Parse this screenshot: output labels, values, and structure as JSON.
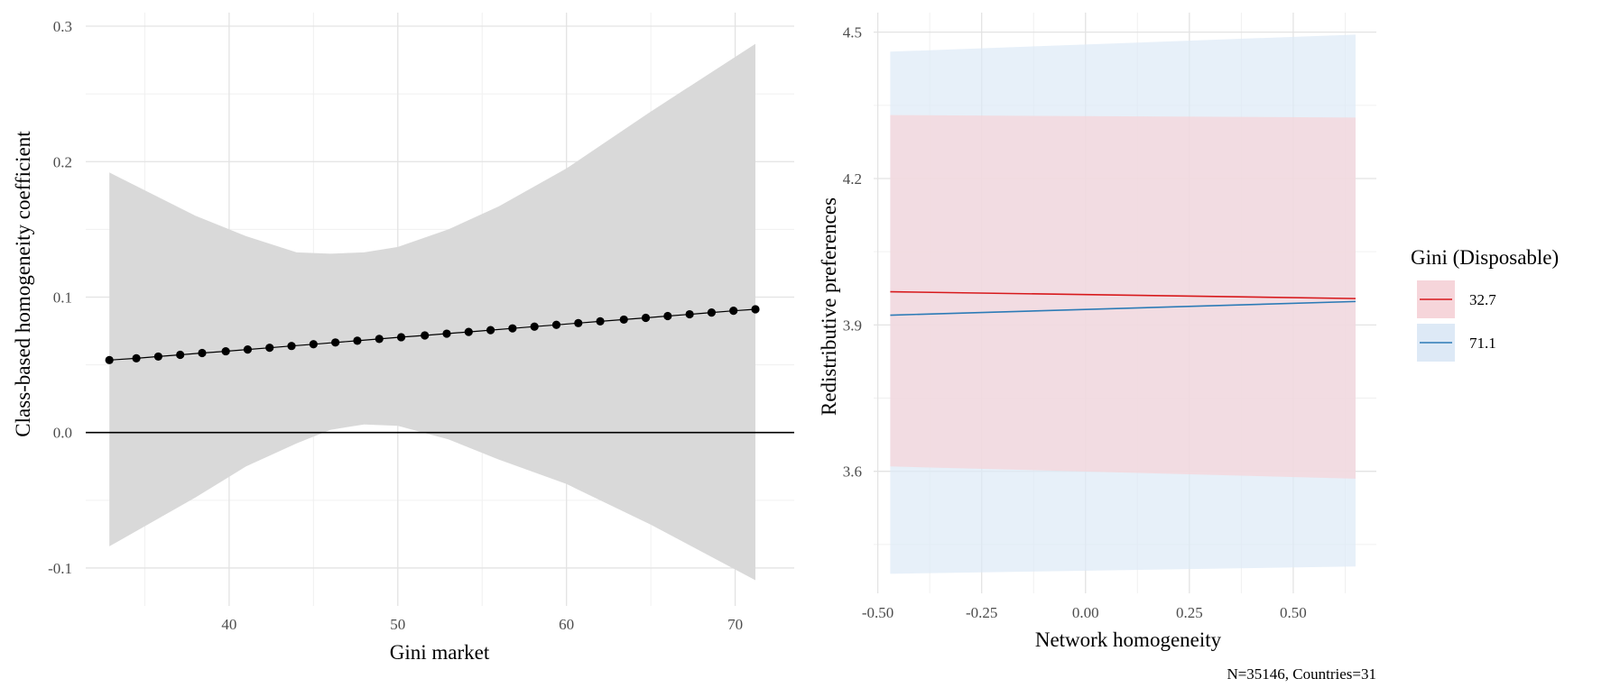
{
  "chart_data": [
    {
      "type": "line",
      "xlabel": "Gini market",
      "ylabel": "Class-based homogeneity coefficient",
      "xlim": [
        31.5,
        73.5
      ],
      "ylim": [
        -0.128,
        0.31
      ],
      "x_ticks": [
        40,
        50,
        60,
        70
      ],
      "x_tick_labels": [
        "40",
        "50",
        "60",
        "70"
      ],
      "y_ticks": [
        -0.1,
        0.0,
        0.1,
        0.2,
        0.3
      ],
      "y_tick_labels": [
        "-0.1",
        "0.0",
        "0.1",
        "0.2",
        "0.3"
      ],
      "reference_line_y": 0,
      "grid": true,
      "series": [
        {
          "x": [
            32.9,
            34.5,
            35.8,
            37.1,
            38.4,
            39.8,
            41.1,
            42.4,
            43.7,
            45.0,
            46.3,
            47.6,
            48.9,
            50.2,
            51.6,
            52.9,
            54.2,
            55.5,
            56.8,
            58.1,
            59.4,
            60.7,
            62.0,
            63.4,
            64.7,
            66.0,
            67.3,
            68.6,
            69.9,
            71.2
          ],
          "values": [
            0.0535,
            0.0548,
            0.0561,
            0.0574,
            0.0587,
            0.06,
            0.0613,
            0.0626,
            0.0639,
            0.0652,
            0.0665,
            0.0678,
            0.0691,
            0.0704,
            0.0717,
            0.073,
            0.0743,
            0.0756,
            0.0769,
            0.0782,
            0.0795,
            0.0808,
            0.0821,
            0.0834,
            0.0847,
            0.086,
            0.0873,
            0.0886,
            0.0899,
            0.091
          ],
          "color": "#000000"
        }
      ],
      "confidence_band": {
        "x": [
          32.9,
          38,
          41,
          44,
          46,
          48,
          50,
          53,
          56,
          60,
          65,
          71.2
        ],
        "upper": [
          0.192,
          0.16,
          0.145,
          0.133,
          0.132,
          0.133,
          0.137,
          0.15,
          0.167,
          0.195,
          0.237,
          0.287
        ],
        "lower": [
          -0.084,
          -0.048,
          -0.025,
          -0.008,
          0.002,
          0.006,
          0.005,
          -0.005,
          -0.02,
          -0.038,
          -0.068,
          -0.109
        ],
        "color": "#d9d9d9"
      }
    },
    {
      "type": "line",
      "xlabel": "Network homogeneity",
      "ylabel": "Redistributive preferences",
      "xlim": [
        -0.51,
        0.7
      ],
      "ylim": [
        3.35,
        4.54
      ],
      "x_ticks": [
        -0.5,
        -0.25,
        0.0,
        0.25,
        0.5
      ],
      "x_tick_labels": [
        "-0.50",
        "-0.25",
        "0.00",
        "0.25",
        "0.50"
      ],
      "y_ticks": [
        3.6,
        3.9,
        4.2,
        4.5
      ],
      "y_tick_labels": [
        "3.6",
        "3.9",
        "4.2",
        "4.5"
      ],
      "grid": true,
      "legend": {
        "title": "Gini (Disposable)",
        "position": "right"
      },
      "series": [
        {
          "name": "32.7",
          "x": [
            -0.47,
            0.65
          ],
          "values": [
            3.968,
            3.954
          ],
          "color": "#d7191c",
          "band_upper": [
            4.33,
            4.325
          ],
          "band_lower": [
            3.61,
            3.585
          ],
          "band_color": "#f6d5da"
        },
        {
          "name": "71.1",
          "x": [
            -0.47,
            0.65
          ],
          "values": [
            3.92,
            3.948
          ],
          "color": "#2c7bb6",
          "band_upper": [
            4.46,
            4.495
          ],
          "band_lower": [
            3.39,
            3.405
          ],
          "band_color": "#dde9f6"
        }
      ],
      "caption": "N=35146, Countries=31"
    }
  ]
}
